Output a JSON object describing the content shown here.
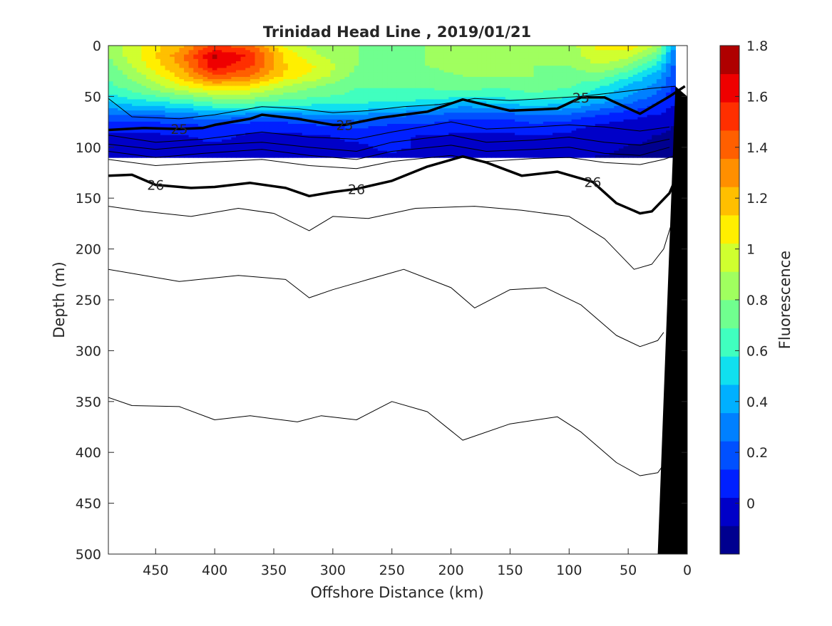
{
  "chart_data": {
    "type": "heatmap",
    "title": "Trinidad Head Line , 2019/01/21",
    "xlabel": "Offshore Distance (km)",
    "ylabel": "Depth (m)",
    "colorbar_label": "Fluorescence",
    "xlim": [
      490,
      0
    ],
    "ylim": [
      0,
      500
    ],
    "x_reversed": true,
    "y_reversed": true,
    "x_ticks": [
      "450",
      "400",
      "350",
      "300",
      "250",
      "200",
      "150",
      "100",
      "50",
      "0"
    ],
    "x_tick_values": [
      450,
      400,
      350,
      300,
      250,
      200,
      150,
      100,
      50,
      0
    ],
    "y_ticks": [
      "0",
      "50",
      "100",
      "150",
      "200",
      "250",
      "300",
      "350",
      "400",
      "450",
      "500"
    ],
    "y_tick_values": [
      0,
      50,
      100,
      150,
      200,
      250,
      300,
      350,
      400,
      450,
      500
    ],
    "colorbar_ticks": [
      "0",
      "0.2",
      "0.4",
      "0.6",
      "0.8",
      "1",
      "1.2",
      "1.4",
      "1.6",
      "1.8"
    ],
    "colorbar_tick_values": [
      0,
      0.2,
      0.4,
      0.6,
      0.8,
      1,
      1.2,
      1.4,
      1.6,
      1.8
    ],
    "colorbar_range": [
      -0.2,
      1.8
    ],
    "colormap": [
      "#00008f",
      "#0000c8",
      "#0020ff",
      "#0050ff",
      "#0080ff",
      "#00b0ff",
      "#10e0ef",
      "#40ffbf",
      "#70ff8f",
      "#a0ff5f",
      "#d0ff2f",
      "#ffef00",
      "#ffbf00",
      "#ff8f00",
      "#ff5f00",
      "#ff2f00",
      "#ef0000",
      "#af0000"
    ],
    "fluorescence_grid": {
      "x": [
        490,
        460,
        430,
        400,
        370,
        340,
        310,
        280,
        250,
        220,
        190,
        160,
        130,
        100,
        75,
        50,
        25,
        10
      ],
      "depth": [
        0,
        10,
        20,
        30,
        40,
        50,
        60,
        70,
        80,
        90,
        100,
        110
      ],
      "values": [
        [
          0.8,
          1.05,
          1.2,
          1.5,
          1.4,
          1.0,
          0.85,
          0.8,
          0.75,
          0.8,
          0.85,
          0.85,
          0.8,
          0.85,
          1.05,
          1.1,
          0.9,
          0.3
        ],
        [
          0.8,
          1.05,
          1.3,
          1.7,
          1.55,
          1.1,
          0.9,
          0.8,
          0.75,
          0.8,
          0.85,
          0.85,
          0.8,
          0.85,
          1.0,
          0.95,
          0.7,
          0.25
        ],
        [
          0.75,
          1.0,
          1.25,
          1.65,
          1.5,
          1.15,
          1.0,
          0.8,
          0.75,
          0.8,
          0.85,
          0.85,
          0.8,
          0.8,
          0.9,
          0.8,
          0.55,
          0.2
        ],
        [
          0.7,
          0.9,
          1.15,
          1.45,
          1.35,
          1.1,
          0.95,
          0.75,
          0.75,
          0.75,
          0.8,
          0.8,
          0.8,
          0.75,
          0.75,
          0.6,
          0.4,
          0.15
        ],
        [
          0.65,
          0.8,
          1.0,
          1.15,
          1.1,
          0.9,
          0.8,
          0.7,
          0.7,
          0.7,
          0.75,
          0.7,
          0.75,
          0.7,
          0.6,
          0.45,
          0.3,
          0.1
        ],
        [
          0.55,
          0.65,
          0.75,
          0.85,
          0.85,
          0.75,
          0.7,
          0.65,
          0.65,
          0.65,
          0.6,
          0.6,
          0.65,
          0.6,
          0.5,
          0.35,
          0.2,
          0.05
        ],
        [
          0.4,
          0.45,
          0.5,
          0.6,
          0.6,
          0.55,
          0.55,
          0.55,
          0.5,
          0.45,
          0.35,
          0.4,
          0.45,
          0.4,
          0.3,
          0.2,
          0.1,
          0.0
        ],
        [
          0.2,
          0.2,
          0.25,
          0.3,
          0.25,
          0.25,
          0.3,
          0.3,
          0.25,
          0.2,
          0.15,
          0.15,
          0.2,
          0.2,
          0.1,
          0.05,
          0.0,
          -0.05
        ],
        [
          0.05,
          0.05,
          0.1,
          0.1,
          0.05,
          0.05,
          0.1,
          0.15,
          0.1,
          0.1,
          0.05,
          0.05,
          0.1,
          0.05,
          0.0,
          -0.05,
          -0.05,
          -0.1
        ],
        [
          0.0,
          0.0,
          0.0,
          0.05,
          0.0,
          0.0,
          0.0,
          0.05,
          0.05,
          0.0,
          0.0,
          0.0,
          0.0,
          0.0,
          -0.05,
          -0.05,
          -0.1,
          -0.1
        ],
        [
          -0.05,
          0.0,
          0.0,
          0.0,
          -0.05,
          0.0,
          0.0,
          0.0,
          0.05,
          0.0,
          -0.05,
          0.0,
          0.0,
          -0.05,
          -0.05,
          -0.1,
          -0.1,
          -0.15
        ],
        [
          -0.05,
          -0.05,
          0.0,
          -0.05,
          -0.05,
          -0.05,
          -0.05,
          0.0,
          0.0,
          -0.05,
          -0.05,
          -0.05,
          -0.05,
          -0.05,
          -0.1,
          -0.1,
          -0.15,
          -0.15
        ]
      ]
    },
    "isopycnals": [
      {
        "label": "",
        "thin": true,
        "points": [
          [
            490,
            52
          ],
          [
            470,
            70
          ],
          [
            430,
            72
          ],
          [
            400,
            68
          ],
          [
            360,
            60
          ],
          [
            330,
            62
          ],
          [
            300,
            66
          ],
          [
            270,
            64
          ],
          [
            240,
            60
          ],
          [
            210,
            58
          ],
          [
            180,
            52
          ],
          [
            150,
            54
          ],
          [
            120,
            52
          ],
          [
            90,
            50
          ],
          [
            60,
            46
          ],
          [
            30,
            42
          ],
          [
            10,
            40
          ]
        ]
      },
      {
        "label": "25",
        "thin": false,
        "points": [
          [
            490,
            83
          ],
          [
            460,
            81
          ],
          [
            430,
            82
          ],
          [
            410,
            81
          ],
          [
            400,
            78
          ],
          [
            370,
            72
          ],
          [
            360,
            68
          ],
          [
            330,
            72
          ],
          [
            300,
            78
          ],
          [
            290,
            78
          ],
          [
            260,
            71
          ],
          [
            220,
            65
          ],
          [
            190,
            53
          ],
          [
            150,
            64
          ],
          [
            110,
            62
          ],
          [
            90,
            51
          ],
          [
            70,
            51
          ],
          [
            40,
            67
          ],
          [
            15,
            50
          ],
          [
            2,
            40
          ]
        ]
      },
      {
        "label": "",
        "thin": true,
        "points": [
          [
            490,
            88
          ],
          [
            450,
            95
          ],
          [
            410,
            92
          ],
          [
            360,
            85
          ],
          [
            320,
            90
          ],
          [
            280,
            92
          ],
          [
            250,
            85
          ],
          [
            200,
            75
          ],
          [
            170,
            82
          ],
          [
            130,
            80
          ],
          [
            100,
            78
          ],
          [
            70,
            80
          ],
          [
            40,
            84
          ],
          [
            15,
            80
          ]
        ]
      },
      {
        "label": "",
        "thin": true,
        "points": [
          [
            490,
            97
          ],
          [
            450,
            102
          ],
          [
            410,
            98
          ],
          [
            360,
            95
          ],
          [
            320,
            100
          ],
          [
            280,
            104
          ],
          [
            250,
            95
          ],
          [
            200,
            88
          ],
          [
            170,
            95
          ],
          [
            130,
            93
          ],
          [
            100,
            90
          ],
          [
            70,
            95
          ],
          [
            40,
            98
          ],
          [
            15,
            92
          ]
        ]
      },
      {
        "label": "",
        "thin": true,
        "points": [
          [
            490,
            104
          ],
          [
            450,
            110
          ],
          [
            410,
            106
          ],
          [
            360,
            102
          ],
          [
            320,
            108
          ],
          [
            280,
            112
          ],
          [
            250,
            104
          ],
          [
            200,
            98
          ],
          [
            170,
            104
          ],
          [
            130,
            102
          ],
          [
            100,
            100
          ],
          [
            70,
            106
          ],
          [
            40,
            108
          ],
          [
            15,
            100
          ]
        ]
      },
      {
        "label": "",
        "thin": true,
        "points": [
          [
            490,
            112
          ],
          [
            450,
            118
          ],
          [
            410,
            115
          ],
          [
            360,
            112
          ],
          [
            320,
            118
          ],
          [
            280,
            121
          ],
          [
            250,
            114
          ],
          [
            200,
            108
          ],
          [
            170,
            114
          ],
          [
            130,
            111
          ],
          [
            100,
            110
          ],
          [
            70,
            115
          ],
          [
            40,
            117
          ],
          [
            20,
            112
          ],
          [
            10,
            108
          ]
        ]
      },
      {
        "label": "26",
        "thin": false,
        "points": [
          [
            490,
            128
          ],
          [
            470,
            127
          ],
          [
            450,
            137
          ],
          [
            420,
            140
          ],
          [
            400,
            139
          ],
          [
            370,
            135
          ],
          [
            340,
            140
          ],
          [
            320,
            148
          ],
          [
            300,
            144
          ],
          [
            280,
            141
          ],
          [
            250,
            133
          ],
          [
            220,
            119
          ],
          [
            190,
            109
          ],
          [
            170,
            115
          ],
          [
            140,
            128
          ],
          [
            110,
            124
          ],
          [
            80,
            134
          ],
          [
            60,
            155
          ],
          [
            40,
            165
          ],
          [
            30,
            163
          ],
          [
            15,
            145
          ],
          [
            5,
            118
          ]
        ]
      },
      {
        "label": "",
        "thin": true,
        "points": [
          [
            490,
            158
          ],
          [
            460,
            163
          ],
          [
            420,
            168
          ],
          [
            380,
            160
          ],
          [
            350,
            165
          ],
          [
            320,
            182
          ],
          [
            300,
            168
          ],
          [
            270,
            170
          ],
          [
            230,
            160
          ],
          [
            180,
            158
          ],
          [
            140,
            162
          ],
          [
            100,
            168
          ],
          [
            70,
            190
          ],
          [
            45,
            220
          ],
          [
            30,
            215
          ],
          [
            20,
            200
          ],
          [
            12,
            170
          ]
        ]
      },
      {
        "label": "",
        "thin": true,
        "points": [
          [
            490,
            220
          ],
          [
            430,
            232
          ],
          [
            380,
            226
          ],
          [
            340,
            230
          ],
          [
            320,
            248
          ],
          [
            300,
            240
          ],
          [
            270,
            230
          ],
          [
            240,
            220
          ],
          [
            200,
            238
          ],
          [
            180,
            258
          ],
          [
            150,
            240
          ],
          [
            120,
            238
          ],
          [
            90,
            255
          ],
          [
            60,
            285
          ],
          [
            40,
            296
          ],
          [
            25,
            290
          ],
          [
            20,
            282
          ]
        ]
      },
      {
        "label": "",
        "thin": true,
        "points": [
          [
            490,
            346
          ],
          [
            470,
            354
          ],
          [
            430,
            355
          ],
          [
            400,
            368
          ],
          [
            370,
            364
          ],
          [
            330,
            370
          ],
          [
            310,
            364
          ],
          [
            280,
            368
          ],
          [
            250,
            350
          ],
          [
            220,
            360
          ],
          [
            190,
            388
          ],
          [
            150,
            372
          ],
          [
            110,
            365
          ],
          [
            90,
            380
          ],
          [
            60,
            410
          ],
          [
            40,
            423
          ],
          [
            25,
            420
          ],
          [
            20,
            412
          ]
        ]
      }
    ],
    "seafloor_wedge": [
      [
        25,
        500
      ],
      [
        0,
        500
      ],
      [
        0,
        50
      ],
      [
        10,
        40
      ]
    ]
  }
}
